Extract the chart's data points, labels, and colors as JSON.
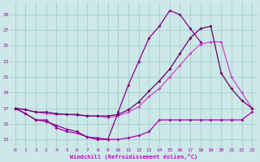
{
  "background_color": "#cce8e8",
  "line_color_a": "#aa00aa",
  "line_color_b": "#880088",
  "line_color_c": "#cc44cc",
  "line_color_d": "#660066",
  "grid_color": "#aacccc",
  "xlabel": "Windchill (Refroidissement éolien,°C)",
  "xlabel_color": "#cc00cc",
  "tick_color": "#aa00aa",
  "ylabel_ticks": [
    13,
    15,
    17,
    19,
    21,
    23,
    25,
    27,
    29
  ],
  "xlim": [
    -0.5,
    23.5
  ],
  "ylim": [
    12.0,
    30.5
  ],
  "series_a_x": [
    0,
    1,
    2,
    3,
    4,
    5,
    6,
    7,
    8,
    9,
    10,
    11,
    12,
    13,
    14,
    15,
    16,
    17,
    18,
    19,
    20,
    21,
    22,
    23
  ],
  "series_a_y": [
    17.0,
    16.3,
    15.5,
    15.5,
    14.5,
    14.0,
    13.8,
    13.3,
    13.2,
    13.0,
    13.0,
    13.2,
    13.5,
    14.0,
    15.5,
    15.5,
    15.5,
    15.5,
    15.5,
    15.5,
    15.5,
    15.5,
    15.5,
    16.5
  ],
  "series_b_x": [
    0,
    1,
    2,
    3,
    4,
    5,
    6,
    7,
    8,
    9,
    10,
    11,
    12,
    13,
    14,
    15,
    16,
    17,
    18
  ],
  "series_b_y": [
    17.0,
    16.3,
    15.5,
    15.3,
    14.8,
    14.3,
    14.0,
    13.3,
    13.0,
    13.0,
    16.5,
    20.0,
    23.0,
    26.0,
    27.5,
    29.5,
    29.0,
    27.2,
    25.5
  ],
  "series_c_x": [
    0,
    1,
    2,
    3,
    4,
    5,
    6,
    7,
    8,
    9,
    10,
    11,
    12,
    13,
    14,
    15,
    16,
    17,
    18,
    19,
    20,
    21,
    22,
    23
  ],
  "series_c_y": [
    17.0,
    16.8,
    16.5,
    16.5,
    16.3,
    16.2,
    16.2,
    16.0,
    16.0,
    16.0,
    16.2,
    16.8,
    17.8,
    19.2,
    20.5,
    22.0,
    24.0,
    26.0,
    27.2,
    27.5,
    21.5,
    19.5,
    18.0,
    17.0
  ],
  "series_d_x": [
    0,
    1,
    2,
    3,
    4,
    5,
    6,
    7,
    8,
    9,
    10,
    11,
    12,
    13,
    14,
    15,
    16,
    17,
    18,
    19,
    20,
    21,
    22,
    23
  ],
  "series_d_y": [
    17.0,
    16.8,
    16.5,
    16.3,
    16.2,
    16.2,
    16.1,
    16.0,
    16.0,
    15.8,
    16.0,
    16.5,
    17.2,
    18.5,
    19.5,
    21.0,
    22.5,
    24.0,
    25.2,
    25.5,
    25.5,
    21.0,
    19.0,
    17.0
  ],
  "marker": "D",
  "marker_size": 2.0,
  "linewidth": 0.9
}
